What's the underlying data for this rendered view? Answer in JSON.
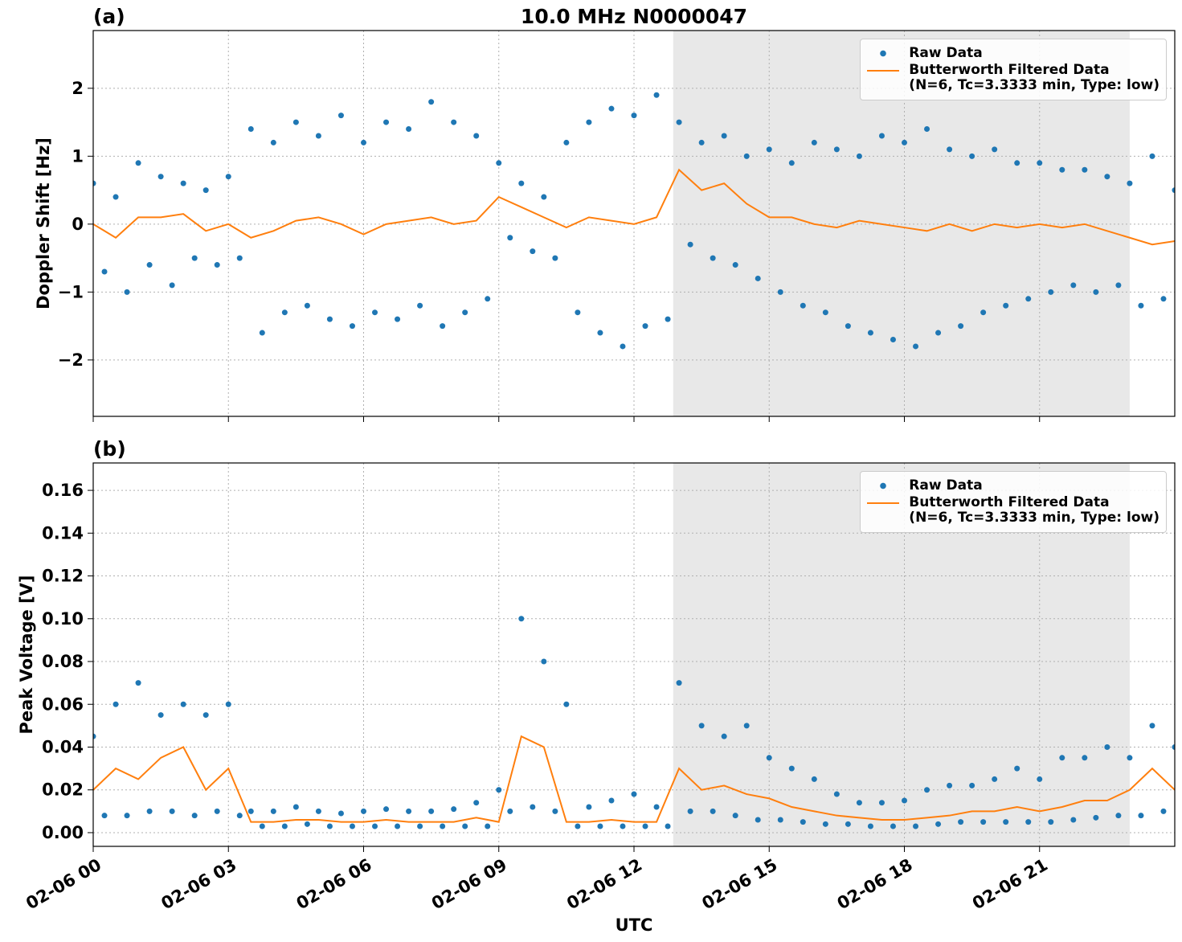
{
  "chart_data": [
    {
      "type": "line",
      "title": "10.0 MHz N0000047",
      "panel_label": "(a)",
      "ylabel": "Doppler Shift [Hz]",
      "xlim": [
        0,
        24
      ],
      "xticks": [
        0,
        3,
        6,
        9,
        12,
        15,
        18,
        21
      ],
      "ylim": [
        -2.83,
        2.85
      ],
      "yticks": [
        {
          "value": -2,
          "label": "−2"
        },
        {
          "value": -1,
          "label": "−1"
        },
        0,
        1,
        2
      ],
      "grid": true,
      "legend": "upper right",
      "shade": [
        12.87,
        23.0
      ],
      "shade_color": "#e8e8e8",
      "series": [
        {
          "name": "Raw Data",
          "type": "scatter",
          "color": "#1f77b4",
          "x": [
            0,
            0.25,
            0.5,
            0.75,
            1,
            1.25,
            1.5,
            1.75,
            2,
            2.25,
            2.5,
            2.75,
            3,
            3.25,
            3.5,
            3.75,
            4,
            4.25,
            4.5,
            4.75,
            5,
            5.25,
            5.5,
            5.75,
            6,
            6.25,
            6.5,
            6.75,
            7,
            7.25,
            7.5,
            7.75,
            8,
            8.25,
            8.5,
            8.75,
            9,
            9.25,
            9.5,
            9.75,
            10,
            10.25,
            10.5,
            10.75,
            11,
            11.25,
            11.5,
            11.75,
            12,
            12.25,
            12.5,
            12.75,
            13,
            13.25,
            13.5,
            13.75,
            14,
            14.25,
            14.5,
            14.75,
            15,
            15.25,
            15.5,
            15.75,
            16,
            16.25,
            16.5,
            16.75,
            17,
            17.25,
            17.5,
            17.75,
            18,
            18.25,
            18.5,
            18.75,
            19,
            19.25,
            19.5,
            19.75,
            20,
            20.25,
            20.5,
            20.75,
            21,
            21.25,
            21.5,
            21.75,
            22,
            22.25,
            22.5,
            22.75,
            23,
            23.25,
            23.5,
            23.75,
            24
          ],
          "values": [
            0.6,
            -0.7,
            0.4,
            -1.0,
            0.9,
            -0.6,
            0.7,
            -0.9,
            0.6,
            -0.5,
            0.5,
            -0.6,
            0.7,
            -0.5,
            1.4,
            -1.6,
            1.2,
            -1.3,
            1.5,
            -1.2,
            1.3,
            -1.4,
            1.6,
            -1.5,
            1.2,
            -1.3,
            1.5,
            -1.4,
            1.4,
            -1.2,
            1.8,
            -1.5,
            1.5,
            -1.3,
            1.3,
            -1.1,
            0.9,
            -0.2,
            0.6,
            -0.4,
            0.4,
            -0.5,
            1.2,
            -1.3,
            1.5,
            -1.6,
            1.7,
            -1.8,
            1.6,
            -1.5,
            1.9,
            -1.4,
            1.5,
            -0.3,
            1.2,
            -0.5,
            1.3,
            -0.6,
            1.0,
            -0.8,
            1.1,
            -1.0,
            0.9,
            -1.2,
            1.2,
            -1.3,
            1.1,
            -1.5,
            1.0,
            -1.6,
            1.3,
            -1.7,
            1.2,
            -1.8,
            1.4,
            -1.6,
            1.1,
            -1.5,
            1.0,
            -1.3,
            1.1,
            -1.2,
            0.9,
            -1.1,
            0.9,
            -1.0,
            0.8,
            -0.9,
            0.8,
            -1.0,
            0.7,
            -0.9,
            0.6,
            -1.2,
            1.0,
            -1.1,
            0.5
          ]
        },
        {
          "name": "Butterworth Filtered Data\n(N=6, Tc=3.3333 min, Type: low)",
          "type": "line",
          "color": "#ff7f0e",
          "x": [
            0,
            0.5,
            1,
            1.5,
            2,
            2.5,
            3,
            3.5,
            4,
            4.5,
            5,
            5.5,
            6,
            6.5,
            7,
            7.5,
            8,
            8.5,
            9,
            9.5,
            10,
            10.5,
            11,
            11.5,
            12,
            12.5,
            13,
            13.5,
            14,
            14.5,
            15,
            15.5,
            16,
            16.5,
            17,
            17.5,
            18,
            18.5,
            19,
            19.5,
            20,
            20.5,
            21,
            21.5,
            22,
            22.5,
            23,
            23.5,
            24
          ],
          "values": [
            0,
            -0.2,
            0.1,
            0.1,
            0.15,
            -0.1,
            0,
            -0.2,
            -0.1,
            0.05,
            0.1,
            0,
            -0.15,
            0,
            0.05,
            0.1,
            0,
            0.05,
            0.4,
            0.25,
            0.1,
            -0.05,
            0.1,
            0.05,
            0,
            0.1,
            0.8,
            0.5,
            0.6,
            0.3,
            0.1,
            0.1,
            0,
            -0.05,
            0.05,
            0,
            -0.05,
            -0.1,
            0,
            -0.1,
            0,
            -0.05,
            0,
            -0.05,
            0,
            -0.1,
            -0.2,
            -0.3,
            -0.25
          ]
        }
      ]
    },
    {
      "type": "line",
      "panel_label": "(b)",
      "ylabel": "Peak Voltage [V]",
      "xlabel": "UTC",
      "xlim": [
        0,
        24
      ],
      "xticks": [
        {
          "value": 0,
          "label": "02-06 00"
        },
        {
          "value": 3,
          "label": "02-06 03"
        },
        {
          "value": 6,
          "label": "02-06 06"
        },
        {
          "value": 9,
          "label": "02-06 09"
        },
        {
          "value": 12,
          "label": "02-06 12"
        },
        {
          "value": 15,
          "label": "02-06 15"
        },
        {
          "value": 18,
          "label": "02-06 18"
        },
        {
          "value": 21,
          "label": "02-06 21"
        }
      ],
      "ylim": [
        -0.0064,
        0.1728
      ],
      "yticks": [
        {
          "value": 0,
          "label": "0.00"
        },
        {
          "value": 0.02,
          "label": "0.02"
        },
        {
          "value": 0.04,
          "label": "0.04"
        },
        {
          "value": 0.06,
          "label": "0.06"
        },
        {
          "value": 0.08,
          "label": "0.08"
        },
        {
          "value": 0.1,
          "label": "0.10"
        },
        {
          "value": 0.12,
          "label": "0.12"
        },
        {
          "value": 0.14,
          "label": "0.14"
        },
        {
          "value": 0.16,
          "label": "0.16"
        }
      ],
      "grid": true,
      "legend": "upper right",
      "shade": [
        12.87,
        23.0
      ],
      "shade_color": "#e8e8e8",
      "series": [
        {
          "name": "Raw Data",
          "type": "scatter",
          "color": "#1f77b4",
          "x": [
            0,
            0.25,
            0.5,
            0.75,
            1,
            1.25,
            1.5,
            1.75,
            2,
            2.25,
            2.5,
            2.75,
            3,
            3.25,
            3.5,
            3.75,
            4,
            4.25,
            4.5,
            4.75,
            5,
            5.25,
            5.5,
            5.75,
            6,
            6.25,
            6.5,
            6.75,
            7,
            7.25,
            7.5,
            7.75,
            8,
            8.25,
            8.5,
            8.75,
            9,
            9.25,
            9.5,
            9.75,
            10,
            10.25,
            10.5,
            10.75,
            11,
            11.25,
            11.5,
            11.75,
            12,
            12.25,
            12.5,
            12.75,
            13,
            13.25,
            13.5,
            13.75,
            14,
            14.25,
            14.5,
            14.75,
            15,
            15.25,
            15.5,
            15.75,
            16,
            16.25,
            16.5,
            16.75,
            17,
            17.25,
            17.5,
            17.75,
            18,
            18.25,
            18.5,
            18.75,
            19,
            19.25,
            19.5,
            19.75,
            20,
            20.25,
            20.5,
            20.75,
            21,
            21.25,
            21.5,
            21.75,
            22,
            22.25,
            22.5,
            22.75,
            23,
            23.25,
            23.5,
            23.75,
            24
          ],
          "values": [
            0.045,
            0.008,
            0.06,
            0.008,
            0.07,
            0.01,
            0.055,
            0.01,
            0.06,
            0.008,
            0.055,
            0.01,
            0.06,
            0.008,
            0.01,
            0.003,
            0.01,
            0.003,
            0.012,
            0.004,
            0.01,
            0.003,
            0.009,
            0.003,
            0.01,
            0.003,
            0.011,
            0.003,
            0.01,
            0.003,
            0.01,
            0.003,
            0.011,
            0.003,
            0.014,
            0.003,
            0.02,
            0.01,
            0.1,
            0.012,
            0.08,
            0.01,
            0.06,
            0.003,
            0.012,
            0.003,
            0.015,
            0.003,
            0.018,
            0.003,
            0.012,
            0.003,
            0.07,
            0.01,
            0.05,
            0.01,
            0.045,
            0.008,
            0.05,
            0.006,
            0.035,
            0.006,
            0.03,
            0.005,
            0.025,
            0.004,
            0.018,
            0.004,
            0.014,
            0.003,
            0.014,
            0.003,
            0.015,
            0.003,
            0.02,
            0.004,
            0.022,
            0.005,
            0.022,
            0.005,
            0.025,
            0.005,
            0.03,
            0.005,
            0.025,
            0.005,
            0.035,
            0.006,
            0.035,
            0.007,
            0.04,
            0.008,
            0.035,
            0.008,
            0.05,
            0.01,
            0.04
          ]
        },
        {
          "name": "Butterworth Filtered Data\n(N=6, Tc=3.3333 min, Type: low)",
          "type": "line",
          "color": "#ff7f0e",
          "x": [
            0,
            0.5,
            1,
            1.5,
            2,
            2.5,
            3,
            3.5,
            4,
            4.5,
            5,
            5.5,
            6,
            6.5,
            7,
            7.5,
            8,
            8.5,
            9,
            9.5,
            10,
            10.5,
            11,
            11.5,
            12,
            12.5,
            13,
            13.5,
            14,
            14.5,
            15,
            15.5,
            16,
            16.5,
            17,
            17.5,
            18,
            18.5,
            19,
            19.5,
            20,
            20.5,
            21,
            21.5,
            22,
            22.5,
            23,
            23.5,
            24
          ],
          "values": [
            0.02,
            0.03,
            0.025,
            0.035,
            0.04,
            0.02,
            0.03,
            0.005,
            0.005,
            0.006,
            0.006,
            0.005,
            0.005,
            0.006,
            0.005,
            0.005,
            0.005,
            0.007,
            0.005,
            0.045,
            0.04,
            0.005,
            0.005,
            0.006,
            0.005,
            0.005,
            0.03,
            0.02,
            0.022,
            0.018,
            0.016,
            0.012,
            0.01,
            0.008,
            0.007,
            0.006,
            0.006,
            0.007,
            0.008,
            0.01,
            0.01,
            0.012,
            0.01,
            0.012,
            0.015,
            0.015,
            0.02,
            0.03,
            0.02
          ]
        }
      ]
    }
  ]
}
